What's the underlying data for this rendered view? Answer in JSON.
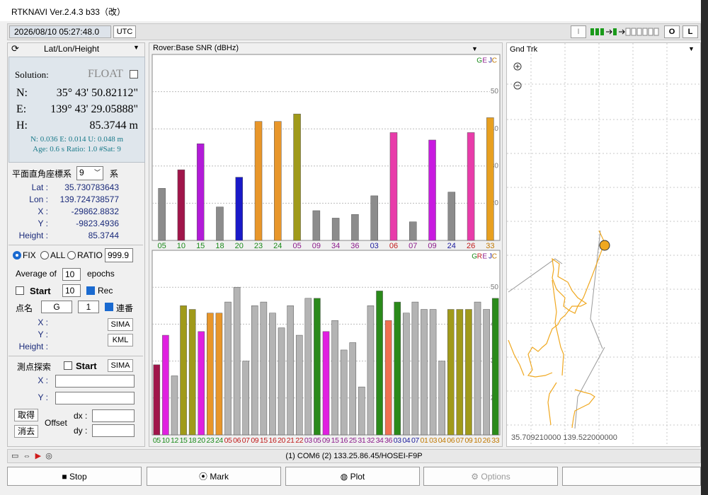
{
  "window": {
    "title": "RTKNAVI Ver.2.4.3 b33（改）"
  },
  "toolbar": {
    "time": "2026/08/10 05:27:48.0",
    "timezone": "UTC",
    "input_indicator": "I",
    "output_indicator": "O",
    "log_indicator": "L"
  },
  "solution_panel": {
    "mode": "Lat/Lon/Height",
    "solution_label": "Solution:",
    "status": "FLOAT",
    "rows": [
      {
        "label": "N:",
        "value": "35° 43' 50.82112\""
      },
      {
        "label": "E:",
        "value": "139° 43' 29.05888\""
      },
      {
        "label": "H:",
        "value": "85.3744 m"
      }
    ],
    "std": "N: 0.036 E: 0.014 U: 0.048 m",
    "age": "Age: 0.6 s Ratio: 1.0 #Sat: 9"
  },
  "coord_panel": {
    "system_label": "平面直角座標系",
    "zone": "9",
    "zone_suffix": "系",
    "rows": [
      {
        "label": "Lat :",
        "value": "35.730783643"
      },
      {
        "label": "Lon :",
        "value": "139.724738577"
      },
      {
        "label": "X :",
        "value": "-29862.8832"
      },
      {
        "label": "Y :",
        "value": "-9823.4936"
      },
      {
        "label": "Height :",
        "value": "85.3744"
      }
    ]
  },
  "controls": {
    "fix": "FIX",
    "all": "ALL",
    "ratio": "RATIO",
    "ratio_value": "999.9",
    "average_of": "Average of",
    "average_count": "10",
    "epochs": "epochs",
    "start": "Start",
    "start_count": "10",
    "rec": "Rec",
    "point_name_label": "点名",
    "point_name": "G",
    "point_number": "1",
    "sequential": "連番",
    "x_label": "X :",
    "y_label": "Y :",
    "height_label": "Height :",
    "sima": "SIMA",
    "kml": "KML",
    "search_label": "測点探索",
    "search_start": "Start",
    "search_sima": "SIMA",
    "search_x": "X :",
    "search_y": "Y :",
    "get": "取得",
    "offset": "Offset",
    "dx": "dx :",
    "clear": "消去",
    "dy": "dy :"
  },
  "snr_panel": {
    "title": "Rover:Base SNR (dBHz)",
    "rover": {
      "type": "bar",
      "legend": [
        {
          "label": "G",
          "color": "#1a8a1a"
        },
        {
          "label": "E",
          "color": "#8b1a8b"
        },
        {
          "label": "J",
          "color": "#1a1a9c"
        },
        {
          "label": "C",
          "color": "#c07800"
        }
      ],
      "categories": [
        "05",
        "10",
        "15",
        "18",
        "20",
        "23",
        "24",
        "05",
        "09",
        "34",
        "36",
        "03",
        "06",
        "07",
        "09",
        "24",
        "26",
        "33"
      ],
      "values": [
        24,
        29,
        36,
        19,
        27,
        42,
        42,
        44,
        18,
        16,
        17,
        22,
        39,
        15,
        37,
        23,
        39,
        43
      ],
      "colors": [
        "#8c8c8c",
        "#a0154a",
        "#b21bd8",
        "#8c8c8c",
        "#1a1ac8",
        "#e8962a",
        "#e8962a",
        "#a09a1a",
        "#8c8c8c",
        "#8c8c8c",
        "#8c8c8c",
        "#8c8c8c",
        "#e83caa",
        "#8c8c8c",
        "#c81ae0",
        "#8c8c8c",
        "#e83caa",
        "#e8a020"
      ],
      "label_colors": [
        "#1a8a1a",
        "#1a8a1a",
        "#1a8a1a",
        "#1a8a1a",
        "#1a8a1a",
        "#1a8a1a",
        "#1a8a1a",
        "#8b1a8b",
        "#8b1a8b",
        "#8b1a8b",
        "#8b1a8b",
        "#1a1a9c",
        "#c01a1a",
        "#8b1a8b",
        "#8b1a8b",
        "#1a1a9c",
        "#c01a1a",
        "#c07800"
      ],
      "ylim": [
        10,
        60
      ],
      "yticks": [
        20,
        30,
        40,
        50
      ],
      "grid": true
    },
    "base": {
      "type": "bar",
      "legend": [
        {
          "label": "G",
          "color": "#1a8a1a"
        },
        {
          "label": "R",
          "color": "#c01a1a"
        },
        {
          "label": "E",
          "color": "#8b1a8b"
        },
        {
          "label": "J",
          "color": "#1a1a9c"
        },
        {
          "label": "C",
          "color": "#c07800"
        }
      ],
      "categories": [
        "05",
        "10",
        "12",
        "15",
        "18",
        "20",
        "23",
        "24",
        "05",
        "06",
        "07",
        "09",
        "15",
        "16",
        "20",
        "21",
        "22",
        "03",
        "05",
        "09",
        "15",
        "16",
        "25",
        "31",
        "32",
        "34",
        "36",
        "03",
        "04",
        "07",
        "01",
        "03",
        "04",
        "06",
        "07",
        "09",
        "10",
        "26",
        "33"
      ],
      "values": [
        29,
        37,
        26,
        45,
        44,
        38,
        43,
        43,
        46,
        50,
        30,
        45,
        46,
        43,
        39,
        45,
        37,
        47,
        47,
        38,
        41,
        33,
        35,
        23,
        45,
        49,
        41,
        46,
        43,
        46,
        44,
        44,
        30,
        44,
        44,
        44,
        46,
        44,
        47
      ],
      "colors": [
        "#a0154a",
        "#e020e0",
        "#b4b4b4",
        "#a09a1a",
        "#a09a1a",
        "#e020e0",
        "#e8962a",
        "#e8962a",
        "#b4b4b4",
        "#b4b4b4",
        "#b4b4b4",
        "#b4b4b4",
        "#b4b4b4",
        "#b4b4b4",
        "#b4b4b4",
        "#b4b4b4",
        "#b4b4b4",
        "#b4b4b4",
        "#2a8a1a",
        "#e020e0",
        "#b4b4b4",
        "#b4b4b4",
        "#b4b4b4",
        "#b4b4b4",
        "#b4b4b4",
        "#2a8a1a",
        "#f07050",
        "#2a8a1a",
        "#b4b4b4",
        "#b4b4b4",
        "#b4b4b4",
        "#b4b4b4",
        "#b4b4b4",
        "#a09a1a",
        "#a09a1a",
        "#a09a1a",
        "#b4b4b4",
        "#b4b4b4",
        "#2a8a1a"
      ],
      "label_colors": [
        "#1a8a1a",
        "#1a8a1a",
        "#1a8a1a",
        "#1a8a1a",
        "#1a8a1a",
        "#1a8a1a",
        "#1a8a1a",
        "#1a8a1a",
        "#c01a1a",
        "#c01a1a",
        "#c01a1a",
        "#c01a1a",
        "#c01a1a",
        "#c01a1a",
        "#c01a1a",
        "#c01a1a",
        "#c01a1a",
        "#8b1a8b",
        "#8b1a8b",
        "#8b1a8b",
        "#8b1a8b",
        "#8b1a8b",
        "#8b1a8b",
        "#8b1a8b",
        "#8b1a8b",
        "#8b1a8b",
        "#8b1a8b",
        "#1a1a9c",
        "#1a1a9c",
        "#1a1a9c",
        "#c07800",
        "#c07800",
        "#c07800",
        "#c07800",
        "#c07800",
        "#c07800",
        "#c07800",
        "#c07800",
        "#c07800"
      ],
      "ylim": [
        10,
        60
      ],
      "yticks": [
        20,
        30,
        40,
        50
      ],
      "grid": true
    }
  },
  "track_panel": {
    "title": "Gnd Trk",
    "position": "35.709210000 139.522000000"
  },
  "status_bar": {
    "connection": "(1) COM6 (2) 133.25.86.45/HOSEI-F9P"
  },
  "buttons": {
    "stop": "Stop",
    "mark": "Mark",
    "plot": "Plot",
    "options": "Options"
  }
}
